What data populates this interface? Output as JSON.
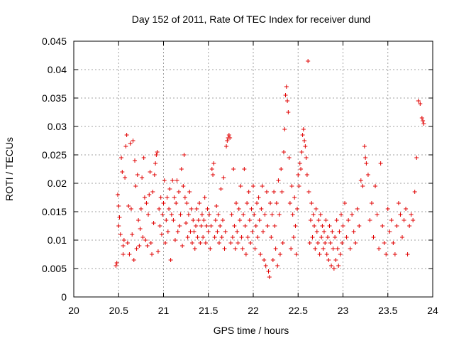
{
  "chart_data": {
    "type": "scatter",
    "title": "Day 152 of 2011, Rate Of TEC Index for receiver dund",
    "xlabel": "GPS time / hours",
    "ylabel": "ROTI / TECUs",
    "xlim": [
      20,
      24
    ],
    "ylim": [
      0,
      0.045
    ],
    "x_ticks": [
      "20",
      "20.5",
      "21",
      "21.5",
      "22",
      "22.5",
      "23",
      "23.5",
      "24"
    ],
    "y_ticks": [
      "0",
      "0.005",
      "0.01",
      "0.015",
      "0.02",
      "0.025",
      "0.03",
      "0.035",
      "0.04",
      "0.045"
    ],
    "grid": true,
    "marker": "+",
    "color": "#e00000",
    "series": [
      {
        "points": [
          [
            20.47,
            0.0055
          ],
          [
            20.48,
            0.006
          ],
          [
            20.49,
            0.018
          ],
          [
            20.5,
            0.016
          ],
          [
            20.5,
            0.0125
          ],
          [
            20.51,
            0.014
          ],
          [
            20.52,
            0.011
          ],
          [
            20.53,
            0.0245
          ],
          [
            20.54,
            0.022
          ],
          [
            20.55,
            0.009
          ],
          [
            20.55,
            0.0075
          ],
          [
            20.56,
            0.01
          ],
          [
            20.57,
            0.021
          ],
          [
            20.58,
            0.0265
          ],
          [
            20.59,
            0.0285
          ],
          [
            20.6,
            0.0095
          ],
          [
            20.61,
            0.016
          ],
          [
            20.62,
            0.0075
          ],
          [
            20.63,
            0.027
          ],
          [
            20.64,
            0.0155
          ],
          [
            20.65,
            0.011
          ],
          [
            20.66,
            0.0275
          ],
          [
            20.67,
            0.0065
          ],
          [
            20.68,
            0.024
          ],
          [
            20.69,
            0.0195
          ],
          [
            20.7,
            0.0085
          ],
          [
            20.71,
            0.0215
          ],
          [
            20.72,
            0.0135
          ],
          [
            20.73,
            0.009
          ],
          [
            20.74,
            0.012
          ],
          [
            20.75,
            0.0155
          ],
          [
            20.76,
            0.021
          ],
          [
            20.77,
            0.0105
          ],
          [
            20.78,
            0.0245
          ],
          [
            20.79,
            0.0175
          ],
          [
            20.8,
            0.01
          ],
          [
            20.81,
            0.0165
          ],
          [
            20.82,
            0.009
          ],
          [
            20.83,
            0.0145
          ],
          [
            20.84,
            0.018
          ],
          [
            20.85,
            0.022
          ],
          [
            20.86,
            0.0095
          ],
          [
            20.87,
            0.0075
          ],
          [
            20.88,
            0.0185
          ],
          [
            20.89,
            0.013
          ],
          [
            20.9,
            0.0215
          ],
          [
            20.91,
            0.0235
          ],
          [
            20.92,
            0.025
          ],
          [
            20.93,
            0.0255
          ],
          [
            20.94,
            0.008
          ],
          [
            20.95,
            0.0155
          ],
          [
            20.96,
            0.0125
          ],
          [
            20.97,
            0.0175
          ],
          [
            20.98,
            0.011
          ],
          [
            20.99,
            0.0145
          ],
          [
            21.0,
            0.0165
          ],
          [
            21.01,
            0.0205
          ],
          [
            21.02,
            0.0095
          ],
          [
            21.03,
            0.0135
          ],
          [
            21.04,
            0.0175
          ],
          [
            21.05,
            0.0115
          ],
          [
            21.06,
            0.0155
          ],
          [
            21.07,
            0.019
          ],
          [
            21.08,
            0.0065
          ],
          [
            21.09,
            0.0145
          ],
          [
            21.1,
            0.0205
          ],
          [
            21.11,
            0.0135
          ],
          [
            21.12,
            0.0175
          ],
          [
            21.13,
            0.01
          ],
          [
            21.14,
            0.0165
          ],
          [
            21.15,
            0.0205
          ],
          [
            21.16,
            0.0115
          ],
          [
            21.17,
            0.0185
          ],
          [
            21.18,
            0.0125
          ],
          [
            21.19,
            0.0145
          ],
          [
            21.2,
            0.0225
          ],
          [
            21.21,
            0.009
          ],
          [
            21.22,
            0.0195
          ],
          [
            21.23,
            0.025
          ],
          [
            21.24,
            0.0175
          ],
          [
            21.25,
            0.013
          ],
          [
            21.26,
            0.0165
          ],
          [
            21.27,
            0.0105
          ],
          [
            21.28,
            0.0145
          ],
          [
            21.29,
            0.0185
          ],
          [
            21.3,
            0.0115
          ],
          [
            21.31,
            0.0155
          ],
          [
            21.32,
            0.0095
          ],
          [
            21.33,
            0.0135
          ],
          [
            21.34,
            0.0115
          ],
          [
            21.35,
            0.0085
          ],
          [
            21.36,
            0.0125
          ],
          [
            21.37,
            0.0155
          ],
          [
            21.38,
            0.0105
          ],
          [
            21.39,
            0.0135
          ],
          [
            21.4,
            0.0165
          ],
          [
            21.41,
            0.0095
          ],
          [
            21.42,
            0.0125
          ],
          [
            21.43,
            0.0145
          ],
          [
            21.44,
            0.0105
          ],
          [
            21.45,
            0.0135
          ],
          [
            21.46,
            0.0175
          ],
          [
            21.47,
            0.0095
          ],
          [
            21.48,
            0.0125
          ],
          [
            21.49,
            0.0155
          ],
          [
            21.5,
            0.0115
          ],
          [
            21.51,
            0.0145
          ],
          [
            21.52,
            0.0085
          ],
          [
            21.53,
            0.0125
          ],
          [
            21.54,
            0.0225
          ],
          [
            21.55,
            0.0215
          ],
          [
            21.56,
            0.0235
          ],
          [
            21.57,
            0.0105
          ],
          [
            21.58,
            0.0135
          ],
          [
            21.59,
            0.016
          ],
          [
            21.6,
            0.0115
          ],
          [
            21.61,
            0.0145
          ],
          [
            21.62,
            0.0095
          ],
          [
            21.63,
            0.0125
          ],
          [
            21.64,
            0.019
          ],
          [
            21.65,
            0.0105
          ],
          [
            21.66,
            0.0135
          ],
          [
            21.67,
            0.021
          ],
          [
            21.68,
            0.0085
          ],
          [
            21.69,
            0.0115
          ],
          [
            21.7,
            0.0265
          ],
          [
            21.71,
            0.0275
          ],
          [
            21.72,
            0.028
          ],
          [
            21.73,
            0.0285
          ],
          [
            21.74,
            0.028
          ],
          [
            21.75,
            0.0095
          ],
          [
            21.76,
            0.0145
          ],
          [
            21.77,
            0.0105
          ],
          [
            21.78,
            0.0225
          ],
          [
            21.79,
            0.0125
          ],
          [
            21.8,
            0.0085
          ],
          [
            21.81,
            0.0165
          ],
          [
            21.82,
            0.0115
          ],
          [
            21.83,
            0.0095
          ],
          [
            21.84,
            0.0155
          ],
          [
            21.85,
            0.0135
          ],
          [
            21.86,
            0.0195
          ],
          [
            21.87,
            0.0105
          ],
          [
            21.88,
            0.0085
          ],
          [
            21.89,
            0.0145
          ],
          [
            21.9,
            0.0225
          ],
          [
            21.91,
            0.0125
          ],
          [
            21.92,
            0.0075
          ],
          [
            21.93,
            0.0165
          ],
          [
            21.94,
            0.0105
          ],
          [
            21.95,
            0.0185
          ],
          [
            21.96,
            0.0135
          ],
          [
            21.97,
            0.0095
          ],
          [
            21.98,
            0.0155
          ],
          [
            21.99,
            0.0115
          ],
          [
            22.0,
            0.0195
          ],
          [
            22.01,
            0.0145
          ],
          [
            22.02,
            0.0085
          ],
          [
            22.03,
            0.0125
          ],
          [
            22.04,
            0.0165
          ],
          [
            22.05,
            0.0105
          ],
          [
            22.06,
            0.0175
          ],
          [
            22.07,
            0.0135
          ],
          [
            22.08,
            0.0075
          ],
          [
            22.09,
            0.0155
          ],
          [
            22.1,
            0.0195
          ],
          [
            22.11,
            0.0115
          ],
          [
            22.12,
            0.0065
          ],
          [
            22.13,
            0.0145
          ],
          [
            22.14,
            0.0055
          ],
          [
            22.15,
            0.0185
          ],
          [
            22.16,
            0.0125
          ],
          [
            22.17,
            0.0045
          ],
          [
            22.18,
            0.0035
          ],
          [
            22.19,
            0.0165
          ],
          [
            22.2,
            0.0105
          ],
          [
            22.21,
            0.0145
          ],
          [
            22.22,
            0.0065
          ],
          [
            22.23,
            0.0185
          ],
          [
            22.24,
            0.0125
          ],
          [
            22.25,
            0.0085
          ],
          [
            22.26,
            0.0165
          ],
          [
            22.27,
            0.0055
          ],
          [
            22.28,
            0.0205
          ],
          [
            22.29,
            0.0145
          ],
          [
            22.3,
            0.0075
          ],
          [
            22.31,
            0.0225
          ],
          [
            22.32,
            0.0185
          ],
          [
            22.33,
            0.0095
          ],
          [
            22.34,
            0.0255
          ],
          [
            22.35,
            0.0295
          ],
          [
            22.36,
            0.0355
          ],
          [
            22.37,
            0.037
          ],
          [
            22.38,
            0.0345
          ],
          [
            22.39,
            0.0325
          ],
          [
            22.4,
            0.0245
          ],
          [
            22.41,
            0.0165
          ],
          [
            22.42,
            0.0085
          ],
          [
            22.43,
            0.0195
          ],
          [
            22.44,
            0.0145
          ],
          [
            22.45,
            0.0105
          ],
          [
            22.46,
            0.0175
          ],
          [
            22.47,
            0.0125
          ],
          [
            22.48,
            0.0075
          ],
          [
            22.49,
            0.0155
          ],
          [
            22.5,
            0.0215
          ],
          [
            22.51,
            0.0195
          ],
          [
            22.52,
            0.0235
          ],
          [
            22.53,
            0.0225
          ],
          [
            22.54,
            0.0255
          ],
          [
            22.55,
            0.0285
          ],
          [
            22.56,
            0.0295
          ],
          [
            22.57,
            0.0275
          ],
          [
            22.58,
            0.0265
          ],
          [
            22.59,
            0.0245
          ],
          [
            22.6,
            0.0215
          ],
          [
            22.61,
            0.0415
          ],
          [
            22.62,
            0.0185
          ],
          [
            22.63,
            0.0095
          ],
          [
            22.64,
            0.0135
          ],
          [
            22.65,
            0.0165
          ],
          [
            22.66,
            0.0105
          ],
          [
            22.67,
            0.0145
          ],
          [
            22.68,
            0.0125
          ],
          [
            22.69,
            0.0085
          ],
          [
            22.7,
            0.0155
          ],
          [
            22.71,
            0.0115
          ],
          [
            22.72,
            0.0095
          ],
          [
            22.73,
            0.0135
          ],
          [
            22.74,
            0.0075
          ],
          [
            22.75,
            0.0145
          ],
          [
            22.76,
            0.0105
          ],
          [
            22.77,
            0.0125
          ],
          [
            22.78,
            0.0085
          ],
          [
            22.79,
            0.0115
          ],
          [
            22.8,
            0.0095
          ],
          [
            22.81,
            0.0135
          ],
          [
            22.82,
            0.0075
          ],
          [
            22.83,
            0.0105
          ],
          [
            22.84,
            0.0065
          ],
          [
            22.85,
            0.0125
          ],
          [
            22.86,
            0.0095
          ],
          [
            22.87,
            0.0055
          ],
          [
            22.88,
            0.0115
          ],
          [
            22.89,
            0.0085
          ],
          [
            22.9,
            0.005
          ],
          [
            22.91,
            0.0105
          ],
          [
            22.92,
            0.0065
          ],
          [
            22.93,
            0.0135
          ],
          [
            22.94,
            0.0085
          ],
          [
            22.95,
            0.0055
          ],
          [
            22.96,
            0.0115
          ],
          [
            22.97,
            0.0075
          ],
          [
            22.98,
            0.0145
          ],
          [
            22.99,
            0.0095
          ],
          [
            23.0,
            0.0125
          ],
          [
            23.02,
            0.0165
          ],
          [
            23.04,
            0.0105
          ],
          [
            23.06,
            0.0135
          ],
          [
            23.08,
            0.0085
          ],
          [
            23.1,
            0.0145
          ],
          [
            23.12,
            0.0115
          ],
          [
            23.14,
            0.0095
          ],
          [
            23.16,
            0.0155
          ],
          [
            23.18,
            0.0125
          ],
          [
            23.2,
            0.0205
          ],
          [
            23.22,
            0.0195
          ],
          [
            23.24,
            0.0265
          ],
          [
            23.25,
            0.0245
          ],
          [
            23.26,
            0.0235
          ],
          [
            23.28,
            0.0215
          ],
          [
            23.3,
            0.0135
          ],
          [
            23.32,
            0.0165
          ],
          [
            23.34,
            0.0105
          ],
          [
            23.36,
            0.0195
          ],
          [
            23.38,
            0.0145
          ],
          [
            23.4,
            0.0085
          ],
          [
            23.42,
            0.0235
          ],
          [
            23.44,
            0.0125
          ],
          [
            23.46,
            0.0095
          ],
          [
            23.48,
            0.0075
          ],
          [
            23.5,
            0.0155
          ],
          [
            23.52,
            0.0115
          ],
          [
            23.54,
            0.0135
          ],
          [
            23.56,
            0.0095
          ],
          [
            23.58,
            0.0075
          ],
          [
            23.6,
            0.0125
          ],
          [
            23.62,
            0.0165
          ],
          [
            23.64,
            0.0145
          ],
          [
            23.66,
            0.0105
          ],
          [
            23.68,
            0.0135
          ],
          [
            23.7,
            0.0155
          ],
          [
            23.72,
            0.0075
          ],
          [
            23.74,
            0.0125
          ],
          [
            23.76,
            0.0145
          ],
          [
            23.78,
            0.0135
          ],
          [
            23.8,
            0.0185
          ],
          [
            23.82,
            0.0245
          ],
          [
            23.84,
            0.0345
          ],
          [
            23.86,
            0.034
          ],
          [
            23.88,
            0.0315
          ],
          [
            23.89,
            0.031
          ],
          [
            23.9,
            0.0305
          ]
        ]
      }
    ]
  }
}
